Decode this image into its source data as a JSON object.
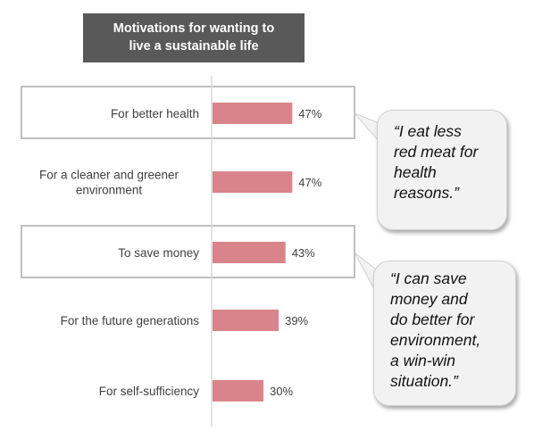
{
  "title_lines": [
    "Motivations for wanting to",
    "live a sustainable life"
  ],
  "chart_data": {
    "type": "bar",
    "orientation": "horizontal",
    "title": "Motivations for wanting to live a sustainable life",
    "categories": [
      [
        "For better health"
      ],
      [
        "For a cleaner and greener",
        "environment"
      ],
      [
        "To save money"
      ],
      [
        "For the future generations"
      ],
      [
        "For self-sufficiency"
      ]
    ],
    "values": [
      47,
      47,
      43,
      39,
      30
    ],
    "value_labels": [
      "47%",
      "47%",
      "43%",
      "39%",
      "30%"
    ],
    "unit": "%",
    "xlim": [
      0,
      100
    ],
    "highlighted": [
      0,
      2
    ],
    "bar_color": "#d9848b",
    "grid": false,
    "legend": "none"
  },
  "quotes": [
    {
      "lines": [
        "“I eat less",
        "red meat for",
        "health",
        "reasons.”"
      ],
      "linked_category": 0
    },
    {
      "lines": [
        "“I can save",
        "money and",
        "do better for",
        "environment,",
        "a win-win",
        "situation.”"
      ],
      "linked_category": 2
    }
  ],
  "colors": {
    "title_bg": "#595959",
    "bar": "#d9848b",
    "highlight_border": "#bfbfbf",
    "axis": "#d9d9d9",
    "bubble_bg": "#f2f2f2"
  }
}
